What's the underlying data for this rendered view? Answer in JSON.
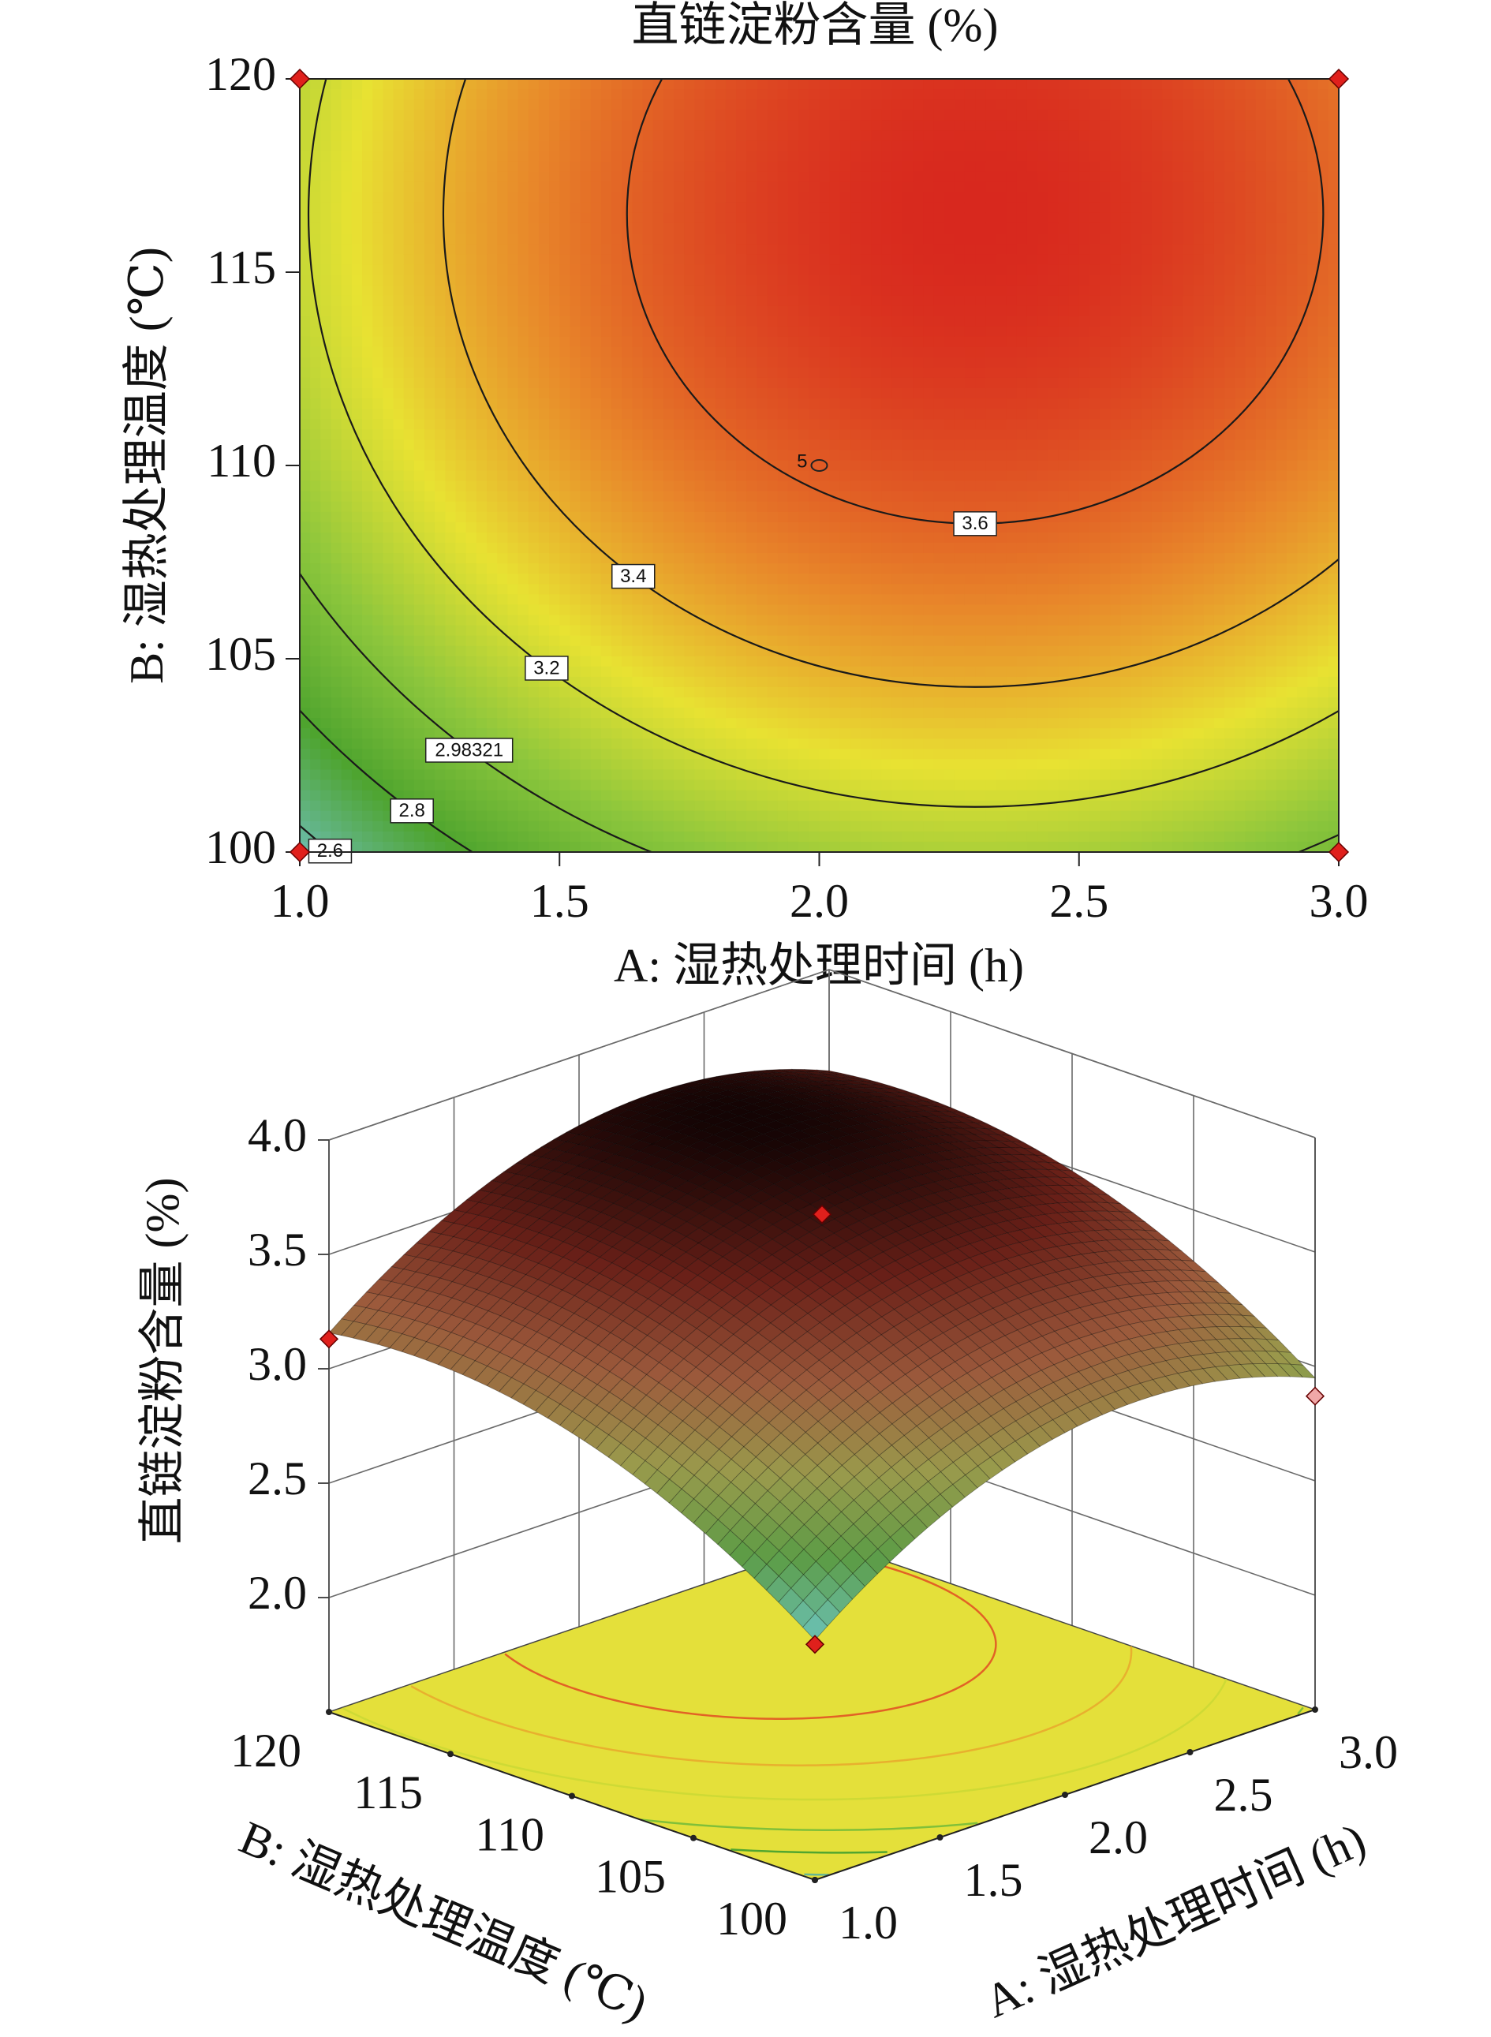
{
  "chart_data": [
    {
      "type": "contour",
      "title": "直链淀粉含量 (%)",
      "xlabel": "A: 湿热处理时间 (h)",
      "ylabel": "B: 湿热处理温度 (℃)",
      "xlim": [
        1,
        3
      ],
      "ylim": [
        100,
        120
      ],
      "xticks": [
        {
          "value": 1,
          "label": "1.0"
        },
        {
          "value": 1.5,
          "label": "1.5"
        },
        {
          "value": 2,
          "label": "2.0"
        },
        {
          "value": 2.5,
          "label": "2.5"
        },
        {
          "value": 3,
          "label": "3.0"
        }
      ],
      "yticks": [
        100,
        105,
        110,
        115,
        120
      ],
      "contour_levels": [
        2.6,
        2.8,
        2.98321,
        3.2,
        3.4,
        3.6
      ],
      "colormap": [
        "#6cbcae",
        "#4ea42e",
        "#8cc63c",
        "#e8e232",
        "#e8862a",
        "#d8281e"
      ],
      "line_color": "#1a1a1a",
      "design_points": {
        "x": [
          1,
          1,
          3,
          3
        ],
        "y": [
          100,
          120,
          120,
          100
        ],
        "color": "#e0201c"
      },
      "center_point": {
        "x": 2,
        "y": 110,
        "count": 5
      }
    },
    {
      "type": "surface3d",
      "zlabel": "直链淀粉含量 (%)",
      "xlabel": "A: 湿热处理时间 (h)",
      "ylabel": "B: 湿热处理温度 (℃)",
      "xlim": [
        1,
        3
      ],
      "ylim": [
        100,
        120
      ],
      "zlim": [
        1.5,
        4
      ],
      "xticks": [
        {
          "value": 1,
          "label": "1.0"
        },
        {
          "value": 1.5,
          "label": "1.5"
        },
        {
          "value": 2,
          "label": "2.0"
        },
        {
          "value": 2.5,
          "label": "2.5"
        },
        {
          "value": 3,
          "label": "3.0"
        }
      ],
      "yticks": [
        100,
        105,
        110,
        115,
        120
      ],
      "zticks": [
        {
          "value": 2,
          "label": "2.0"
        },
        {
          "value": 2.5,
          "label": "2.5"
        },
        {
          "value": 3,
          "label": "3.0"
        },
        {
          "value": 3.5,
          "label": "3.5"
        },
        {
          "value": 4,
          "label": "4.0"
        }
      ],
      "colormap": [
        "#6cc4bc",
        "#5c9c46",
        "#9a9a4c",
        "#9c5a3c",
        "#6a2018",
        "#140404"
      ],
      "floor_color": "#e4e03a",
      "grid_color": "#6a6a6a",
      "points": {
        "x": [
          1,
          3,
          2,
          1
        ],
        "y": [
          120,
          100,
          110,
          100
        ],
        "z": [
          3.13,
          2.87,
          3.67,
          2.53
        ],
        "colors": [
          "#e0201c",
          "#f0a8a8",
          "#e0201c",
          "#e0201c"
        ]
      }
    }
  ]
}
